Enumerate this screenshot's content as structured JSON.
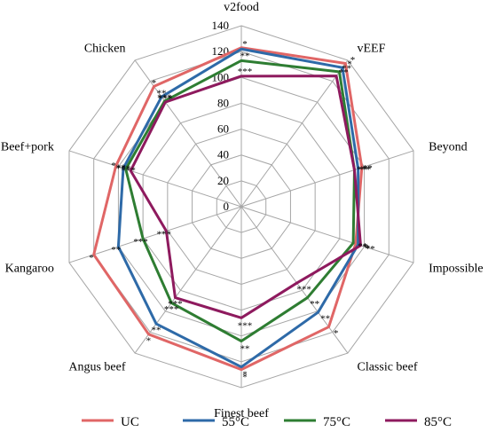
{
  "chart_data": {
    "type": "radar",
    "title": "",
    "categories": [
      "v2food",
      "vEEF",
      "Beyond",
      "Impossible",
      "Classic beef",
      "Finest beef",
      "Angus beef",
      "Kangaroo",
      "Beef+pork",
      "Chicken"
    ],
    "rlim": [
      0,
      140
    ],
    "ticks": [
      "0",
      "20",
      "40",
      "60",
      "80",
      "100",
      "120",
      "140"
    ],
    "grid": true,
    "legend_position": "bottom",
    "series": [
      {
        "name": "UC",
        "color": "#e06666",
        "values": [
          123,
          137,
          98,
          93,
          115,
          126,
          122,
          120,
          102,
          115
        ]
      },
      {
        "name": "55°C",
        "color": "#2e6aa8",
        "values": [
          122,
          133,
          95,
          95,
          101,
          124,
          112,
          100,
          96,
          105
        ]
      },
      {
        "name": "75°C",
        "color": "#2e7d32",
        "values": [
          113,
          129,
          92,
          91,
          87,
          104,
          92,
          80,
          94,
          101
        ]
      },
      {
        "name": "85°C",
        "color": "#8e1a5e",
        "values": [
          101,
          125,
          92,
          97,
          73,
          86,
          87,
          61,
          90,
          100
        ]
      }
    ],
    "significance": [
      {
        "series": "55°C",
        "marks": [
          "*",
          "*",
          "**",
          "*",
          "**",
          "*",
          "**",
          "**",
          "**",
          "**"
        ]
      },
      {
        "series": "75°C",
        "marks": [
          "**",
          "**",
          "**",
          "**",
          "**",
          "**",
          "***",
          "***",
          "***",
          "***"
        ]
      },
      {
        "series": "85°C",
        "marks": [
          "***",
          "**",
          "***",
          "**",
          "***",
          "***",
          "***",
          "***",
          "***",
          "***"
        ]
      },
      {
        "series": "UC",
        "marks": [
          "",
          "*",
          "",
          "*",
          "*",
          "*",
          "*",
          "*",
          "*",
          "*"
        ]
      }
    ]
  }
}
